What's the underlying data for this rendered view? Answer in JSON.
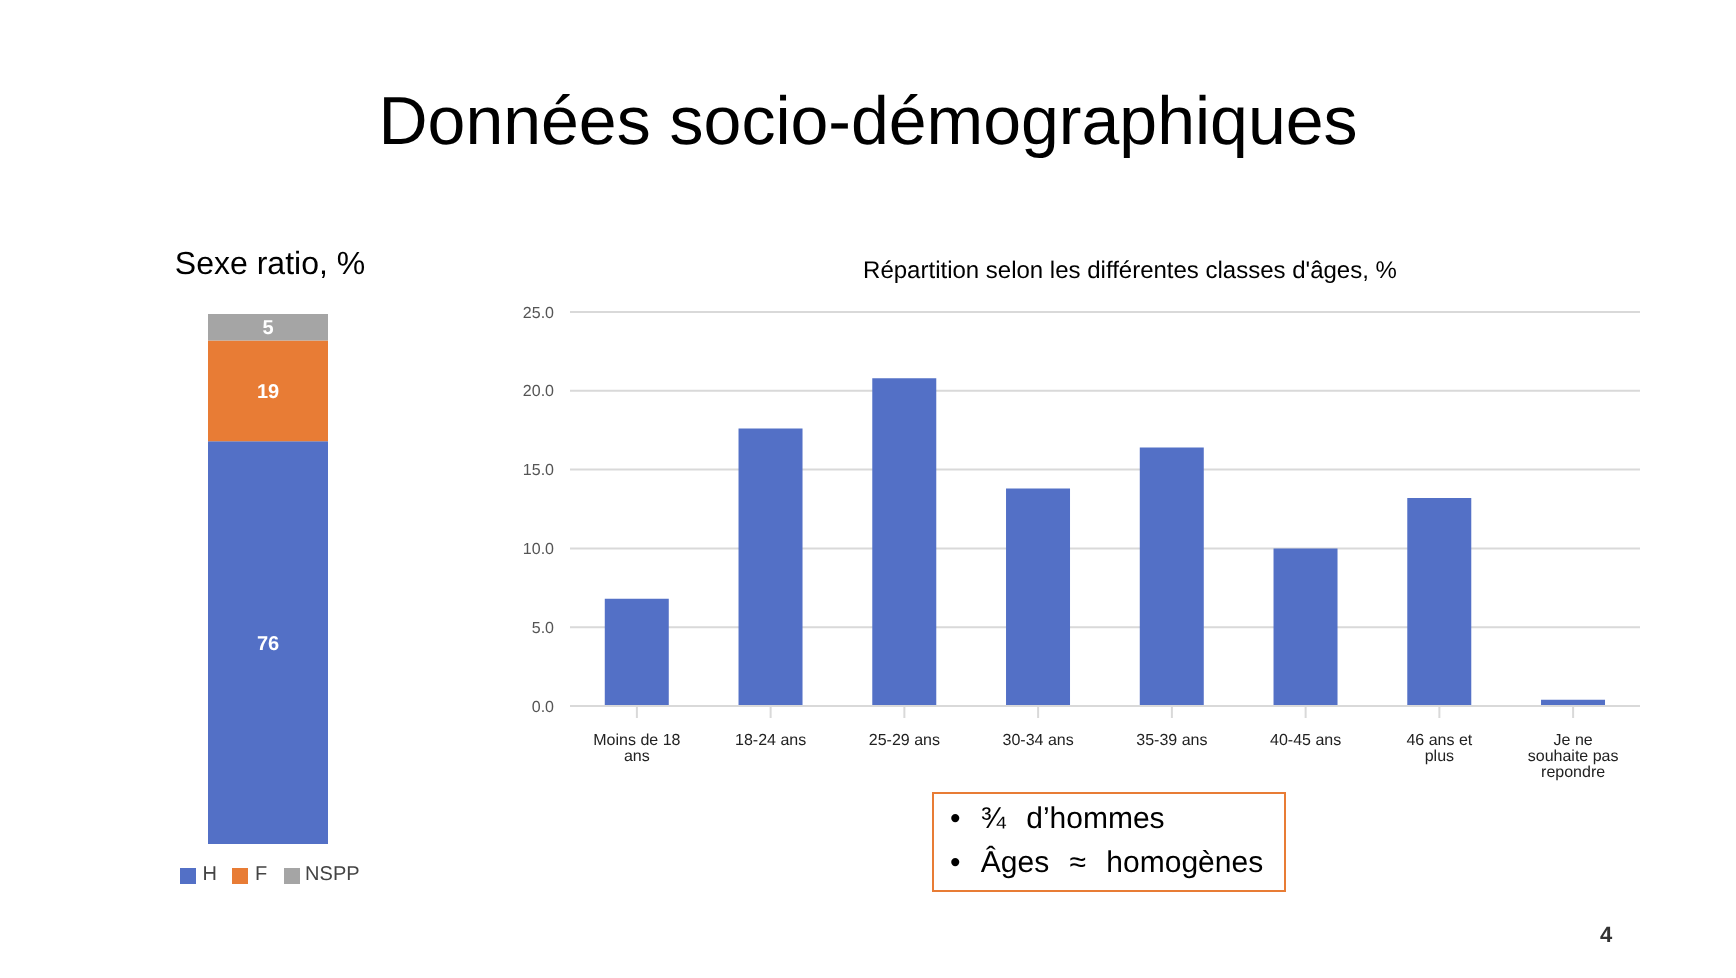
{
  "chart_data": [
    {
      "type": "other",
      "title": "Données socio-démographiques",
      "annotations": [
        "4"
      ]
    },
    {
      "type": "bar",
      "title": "Sexe ratio, %",
      "stacked": true,
      "data_labels": true,
      "legend": "bottom",
      "categories": [
        null
      ],
      "series": [
        {
          "name": "H",
          "color": "#5370c6",
          "values": [
            76
          ]
        },
        {
          "name": "F",
          "color": "#e87c35",
          "values": [
            19
          ]
        },
        {
          "name": "NSPP",
          "color": "#a5a5a5",
          "values": [
            5
          ]
        }
      ]
    },
    {
      "type": "bar",
      "title": "Répartition selon les différentes classes d'âges, %",
      "categories": [
        "Moins de 18 ans",
        "18-24 ans",
        "25-29 ans",
        "30-34 ans",
        "35-39 ans",
        "40-45 ans",
        "46 ans et plus",
        "Je ne souhaite pas repondre"
      ],
      "values": [
        6.8,
        17.6,
        20.8,
        13.8,
        16.4,
        10.0,
        13.2,
        0.4
      ],
      "color": "#5370c6",
      "ylim": [
        0,
        25
      ],
      "yticks": [
        {
          "value": 0,
          "label": "0.0"
        },
        {
          "value": 5,
          "label": "5.0"
        },
        {
          "value": 10,
          "label": "10.0"
        },
        {
          "value": 15,
          "label": "15.0"
        },
        {
          "value": 20,
          "label": "20.0"
        },
        {
          "value": 25,
          "label": "25.0"
        }
      ],
      "grid": "y",
      "annotations": [
        "• ¾ d’hommes",
        "• Âges ≈ homogènes"
      ]
    }
  ]
}
